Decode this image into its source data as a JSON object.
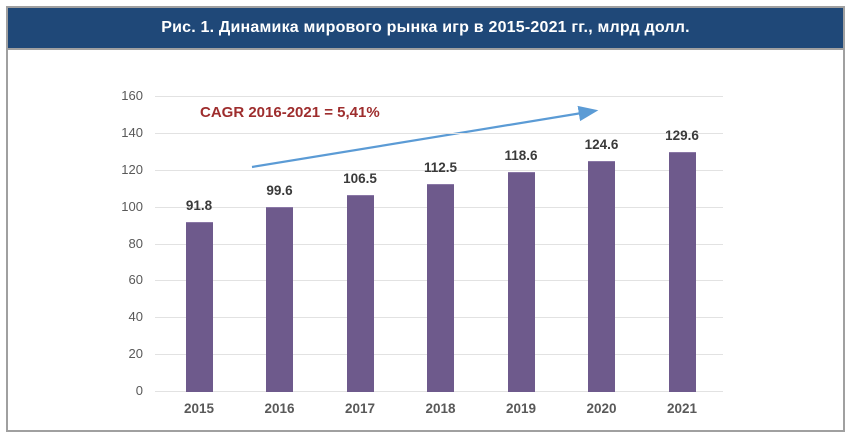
{
  "figure": {
    "title": "Рис. 1. Динамика мирового рынка игр в 2015-2021 гг., млрд долл."
  },
  "chart_data": {
    "type": "bar",
    "title": "Рис. 1. Динамика мирового рынка игр в 2015-2021 гг., млрд долл.",
    "categories": [
      "2015",
      "2016",
      "2017",
      "2018",
      "2019",
      "2020",
      "2021"
    ],
    "values": [
      91.8,
      99.6,
      106.5,
      112.5,
      118.6,
      124.6,
      129.6
    ],
    "data_labels": [
      "91.8",
      "99.6",
      "106.5",
      "112.5",
      "118.6",
      "124.6",
      "129.6"
    ],
    "xlabel": "",
    "ylabel": "",
    "ylim": [
      0,
      160
    ],
    "yticks": [
      0,
      20,
      40,
      60,
      80,
      100,
      120,
      140,
      160
    ],
    "grid": true,
    "legend": "none",
    "annotation": "CAGR 2016-2021 = 5,41%",
    "trend_arrow": true,
    "colors": {
      "bar": "#6E5A8C",
      "title_bar_bg": "#1F4878",
      "title_text": "#FFFFFF",
      "annotation_text": "#9E2D2D",
      "arrow": "#5B9BD5",
      "gridline": "#E2E2E2",
      "axis_label": "#595959",
      "data_label": "#3A3A3A",
      "frame_border": "#A0A0A0"
    }
  }
}
